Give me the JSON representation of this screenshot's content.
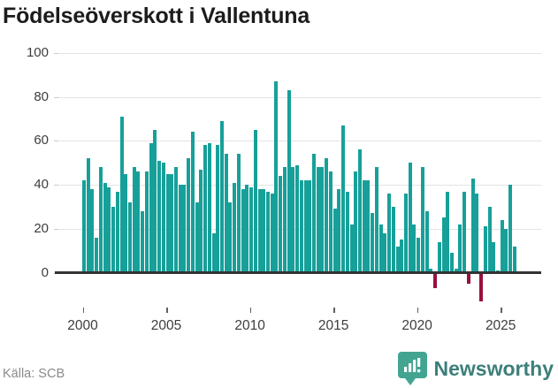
{
  "title": "Födelseöverskott i Vallentuna",
  "source": "Källa: SCB",
  "branding": {
    "name": "Newsworthy",
    "logo_icon": "bar-chart-speech-bubble-icon"
  },
  "colors": {
    "bar_positive": "#17a099",
    "bar_negative": "#98103e",
    "grid": "#e3e3e3",
    "axis": "#333333",
    "brand_teal": "#43a491",
    "brand_text": "#3d7f7a"
  },
  "chart_data": {
    "type": "bar",
    "title": "Födelseöverskott i Vallentuna",
    "xlabel": "",
    "ylabel": "",
    "grid": "horizontal",
    "legend": "none",
    "frequency": "quarterly",
    "start_year": 2000,
    "ylim": [
      -15,
      100
    ],
    "y_ticks": [
      0,
      20,
      40,
      60,
      80,
      100
    ],
    "x_tick_labels": [
      "2000",
      "2005",
      "2010",
      "2015",
      "2020",
      "2025"
    ],
    "values": [
      42,
      52,
      38,
      16,
      48,
      41,
      39,
      30,
      37,
      71,
      45,
      32,
      48,
      46,
      28,
      46,
      59,
      65,
      51,
      50,
      45,
      45,
      48,
      40,
      40,
      52,
      64,
      32,
      47,
      58,
      59,
      18,
      58,
      69,
      54,
      32,
      41,
      54,
      38,
      40,
      39,
      65,
      38,
      38,
      37,
      36,
      87,
      44,
      48,
      83,
      48,
      49,
      42,
      42,
      42,
      54,
      48,
      48,
      52,
      46,
      29,
      38,
      67,
      37,
      22,
      46,
      56,
      42,
      42,
      27,
      48,
      22,
      18,
      36,
      30,
      12,
      15,
      36,
      50,
      22,
      16,
      48,
      28,
      2,
      -7,
      14,
      25,
      37,
      9,
      2,
      22,
      37,
      -5,
      43,
      36,
      -13,
      21,
      30,
      14,
      1,
      24,
      20,
      40,
      12
    ]
  }
}
